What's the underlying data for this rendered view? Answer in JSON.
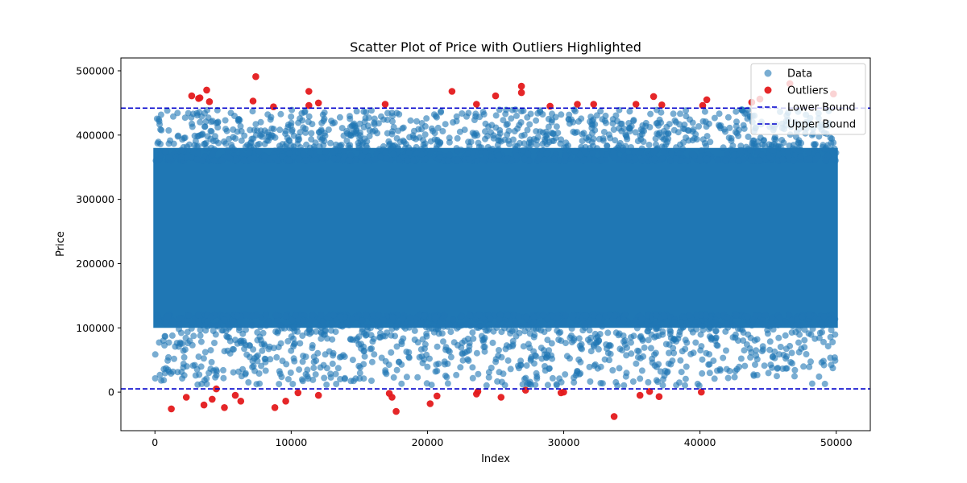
{
  "chart_data": {
    "type": "scatter",
    "title": "Scatter Plot of Price with Outliers Highlighted",
    "xlabel": "Index",
    "ylabel": "Price",
    "xlim": [
      -2500,
      52500
    ],
    "ylim": [
      -60000,
      520000
    ],
    "x_ticks": [
      0,
      10000,
      20000,
      30000,
      40000,
      50000
    ],
    "y_ticks": [
      0,
      100000,
      200000,
      300000,
      400000,
      500000
    ],
    "grid": false,
    "legend_position": "top-right",
    "colors": {
      "data": "#1f77b4",
      "outliers": "#e41a1c",
      "bounds": "#0000cc"
    },
    "series": [
      {
        "name": "Data",
        "kind": "scatter",
        "n_points": 50000,
        "x_range": [
          0,
          50000
        ],
        "dense_band": [
          100000,
          380000
        ],
        "spread_band": [
          10000,
          440000
        ]
      },
      {
        "name": "Outliers",
        "kind": "scatter",
        "points": [
          [
            1200,
            -26000
          ],
          [
            2300,
            -8000
          ],
          [
            2700,
            461000
          ],
          [
            3200,
            457000
          ],
          [
            3300,
            458000
          ],
          [
            3600,
            -20000
          ],
          [
            3800,
            470000
          ],
          [
            4000,
            452000
          ],
          [
            4200,
            -11000
          ],
          [
            4500,
            5000
          ],
          [
            5100,
            -24000
          ],
          [
            5900,
            -5000
          ],
          [
            6300,
            -14000
          ],
          [
            7200,
            453000
          ],
          [
            7400,
            491000
          ],
          [
            8700,
            444000
          ],
          [
            8800,
            -24000
          ],
          [
            9600,
            -14000
          ],
          [
            10500,
            -1000
          ],
          [
            11300,
            468000
          ],
          [
            11300,
            446000
          ],
          [
            12000,
            450000
          ],
          [
            12000,
            -5000
          ],
          [
            16900,
            448000
          ],
          [
            17200,
            -2000
          ],
          [
            17400,
            -8000
          ],
          [
            17700,
            -30000
          ],
          [
            20200,
            -18000
          ],
          [
            20700,
            -6000
          ],
          [
            21800,
            468000
          ],
          [
            23600,
            448000
          ],
          [
            23600,
            -3000
          ],
          [
            23700,
            1000
          ],
          [
            25000,
            461000
          ],
          [
            25400,
            -8000
          ],
          [
            26900,
            476000
          ],
          [
            26900,
            466000
          ],
          [
            27200,
            3000
          ],
          [
            29000,
            445000
          ],
          [
            29800,
            -1000
          ],
          [
            30000,
            0
          ],
          [
            31000,
            448000
          ],
          [
            32200,
            448000
          ],
          [
            33700,
            -38000
          ],
          [
            35300,
            448000
          ],
          [
            35600,
            -5000
          ],
          [
            36300,
            1000
          ],
          [
            36600,
            460000
          ],
          [
            37000,
            -7000
          ],
          [
            37200,
            447000
          ],
          [
            40100,
            0
          ],
          [
            40200,
            446000
          ],
          [
            40500,
            455000
          ],
          [
            43800,
            451000
          ],
          [
            44400,
            456000
          ],
          [
            46600,
            480000
          ],
          [
            49800,
            464000
          ]
        ]
      },
      {
        "name": "Lower Bound",
        "kind": "hline",
        "y": 5000
      },
      {
        "name": "Upper Bound",
        "kind": "hline",
        "y": 442000
      }
    ]
  }
}
